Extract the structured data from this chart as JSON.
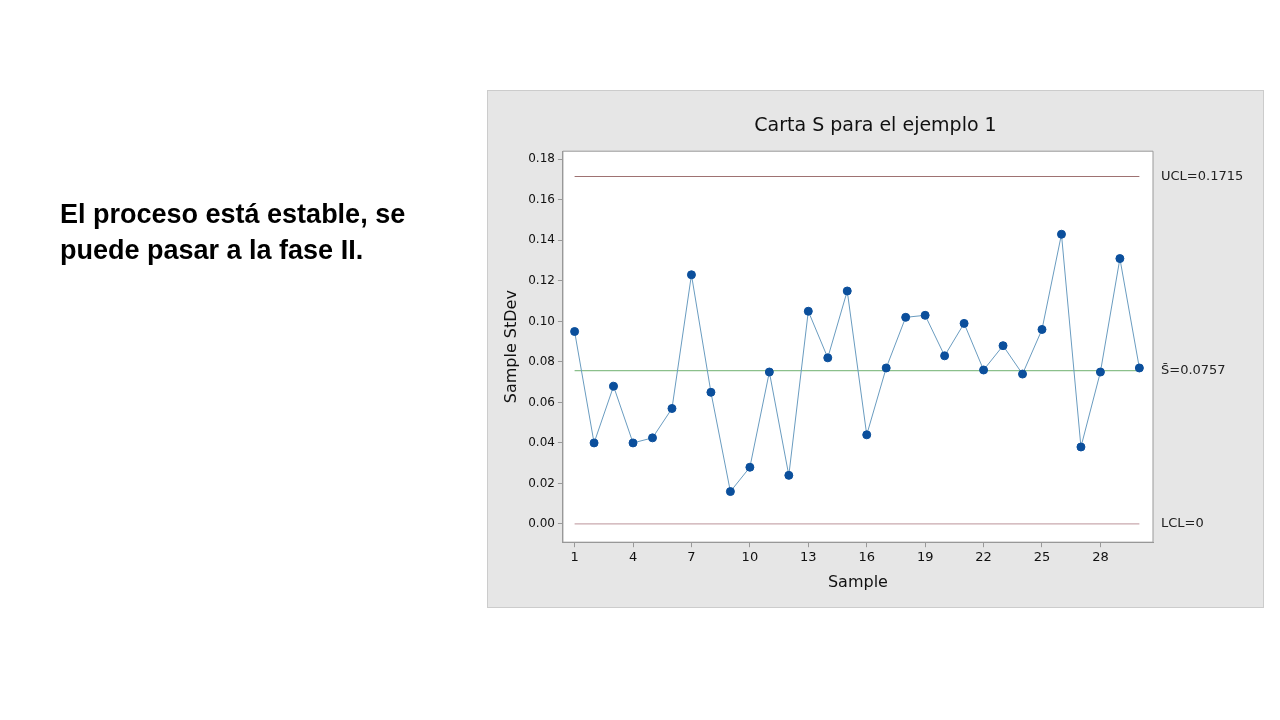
{
  "chart_data": {
    "type": "line",
    "title": "Carta S para el ejemplo 1",
    "xlabel": "Sample",
    "ylabel": "Sample StDev",
    "annotations": [
      "El proceso está estable, se puede pasar a la fase II."
    ],
    "x": [
      1,
      2,
      3,
      4,
      5,
      6,
      7,
      8,
      9,
      10,
      11,
      12,
      13,
      14,
      15,
      16,
      17,
      18,
      19,
      20,
      21,
      22,
      23,
      24,
      25,
      26,
      27,
      28,
      29,
      30
    ],
    "series": [
      {
        "color": "#0b4f9c",
        "values": [
          0.095,
          0.04,
          0.068,
          0.04,
          0.0425,
          0.057,
          0.123,
          0.065,
          0.016,
          0.028,
          0.075,
          0.024,
          0.105,
          0.082,
          0.115,
          0.044,
          0.077,
          0.102,
          0.103,
          0.083,
          0.099,
          0.076,
          0.088,
          0.074,
          0.096,
          0.143,
          0.038,
          0.075,
          0.131,
          0.077
        ]
      }
    ],
    "xlim": [
      0.4,
      30.7
    ],
    "xticks": [
      1,
      4,
      7,
      10,
      13,
      16,
      19,
      22,
      25,
      28
    ],
    "ylim": [
      -0.009,
      0.184
    ],
    "yticks": [
      {
        "value": 0,
        "label": "0.00"
      },
      {
        "value": 0.02,
        "label": "0.02"
      },
      {
        "value": 0.04,
        "label": "0.04"
      },
      {
        "value": 0.06,
        "label": "0.06"
      },
      {
        "value": 0.08,
        "label": "0.08"
      },
      {
        "value": 0.1,
        "label": "0.10"
      },
      {
        "value": 0.12,
        "label": "0.12"
      },
      {
        "value": 0.14,
        "label": "0.14"
      },
      {
        "value": 0.16,
        "label": "0.16"
      },
      {
        "value": 0.18,
        "label": "0.18"
      }
    ],
    "ref_lines": [
      {
        "axis": "y",
        "value": 0.1715,
        "label": "UCL=0.1715",
        "color": "#9e7272"
      },
      {
        "axis": "y",
        "value": 0.0757,
        "label": "S̄=0.0757",
        "color": "#8cc08c"
      },
      {
        "axis": "y",
        "value": 0,
        "label": "LCL=0",
        "color": "#c9a9ae"
      }
    ],
    "legend": false,
    "marker": "circle",
    "line_style": "solid"
  }
}
